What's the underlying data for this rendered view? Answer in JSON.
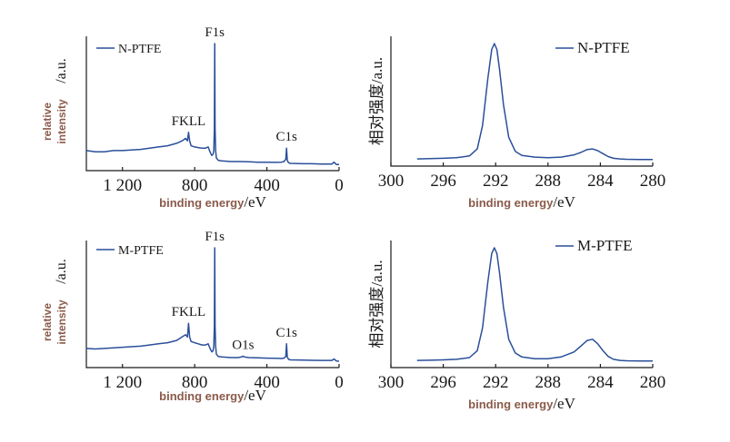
{
  "colors": {
    "series": "#2a4f9a",
    "axis": "#1a1a1a",
    "label_bold": "#8a5a4a"
  },
  "chart_data": [
    {
      "type": "line",
      "panel": "survey",
      "legend": "N-PTFE",
      "xlabel_bold": "binding energy",
      "xlabel_unit": "/eV",
      "ylabel_bold_1": "relative",
      "ylabel_bold_2": "intensity",
      "ylabel_unit": "/a.u.",
      "xlim": [
        1400,
        0
      ],
      "x_ticks": [
        1200,
        800,
        400,
        0
      ],
      "x_tick_labels": [
        "1 200",
        "800",
        "400",
        "0"
      ],
      "peaks": [
        {
          "label": "F1s",
          "x": 689,
          "y": 100
        },
        {
          "label": "FKLL",
          "x": 834,
          "y": 27
        },
        {
          "label": "C1s",
          "x": 291,
          "y": 14
        }
      ],
      "series": [
        {
          "x": [
            1400,
            1350,
            1300,
            1250,
            1200,
            1150,
            1100,
            1050,
            1000,
            950,
            900,
            870,
            850,
            840,
            834,
            828,
            820,
            800,
            780,
            760,
            740,
            725,
            715,
            705,
            698,
            694,
            691,
            689,
            687,
            684,
            680,
            670,
            650,
            600,
            550,
            500,
            450,
            400,
            350,
            320,
            305,
            295,
            291,
            287,
            280,
            270,
            200,
            150,
            100,
            60,
            40,
            28,
            15,
            0
          ],
          "y": [
            12,
            11,
            11,
            12,
            12,
            12.5,
            13,
            14,
            15,
            16,
            18,
            20,
            22,
            20,
            27,
            20,
            16,
            15,
            14.5,
            14,
            14,
            15,
            11,
            8,
            9,
            12,
            30,
            100,
            30,
            12,
            6,
            4,
            3.5,
            3,
            3,
            2.8,
            2.5,
            2.5,
            2.3,
            2.5,
            3,
            5,
            14,
            4,
            2,
            1.5,
            1.2,
            1.2,
            1,
            1,
            1,
            2.5,
            0.6,
            0.5
          ]
        }
      ]
    },
    {
      "type": "line",
      "panel": "C1s",
      "legend": "N-PTFE",
      "xlabel_bold": "binding energy",
      "xlabel_unit": "/eV",
      "ylabel": "相对强度/a.u.",
      "xlim": [
        300,
        280
      ],
      "x_ticks": [
        300,
        296,
        292,
        288,
        284,
        280
      ],
      "series": [
        {
          "x": [
            298,
            297,
            296,
            295,
            294,
            293.4,
            293,
            292.6,
            292.3,
            292.1,
            291.9,
            291.7,
            291.4,
            291,
            290.5,
            290,
            289,
            288,
            287,
            286,
            285.5,
            285,
            284.6,
            284.2,
            283.8,
            283.4,
            283,
            282.5,
            282,
            281,
            280
          ],
          "y": [
            1.5,
            1.7,
            2,
            2.5,
            4,
            10,
            30,
            70,
            95,
            100,
            95,
            78,
            48,
            20,
            8,
            4.5,
            3,
            2.5,
            3,
            5,
            7,
            9.5,
            10,
            8.5,
            6,
            3.5,
            2,
            1.5,
            1.2,
            1,
            1
          ]
        }
      ]
    },
    {
      "type": "line",
      "panel": "survey",
      "legend": "M-PTFE",
      "xlabel_bold": "binding energy",
      "xlabel_unit": "/eV",
      "ylabel_bold_1": "relative",
      "ylabel_bold_2": "intensity",
      "ylabel_unit": "/a.u.",
      "xlim": [
        1400,
        0
      ],
      "x_ticks": [
        1200,
        800,
        400,
        0
      ],
      "x_tick_labels": [
        "1 200",
        "800",
        "400",
        "0"
      ],
      "peaks": [
        {
          "label": "F1s",
          "x": 689,
          "y": 100
        },
        {
          "label": "FKLL",
          "x": 834,
          "y": 34
        },
        {
          "label": "O1s",
          "x": 532,
          "y": 5
        },
        {
          "label": "C1s",
          "x": 291,
          "y": 16
        }
      ],
      "series": [
        {
          "x": [
            1400,
            1350,
            1300,
            1250,
            1200,
            1150,
            1100,
            1050,
            1000,
            950,
            900,
            870,
            850,
            840,
            834,
            828,
            820,
            800,
            780,
            760,
            740,
            725,
            715,
            705,
            698,
            694,
            691,
            689,
            687,
            684,
            680,
            670,
            650,
            600,
            560,
            540,
            532,
            525,
            500,
            450,
            400,
            350,
            320,
            305,
            295,
            291,
            287,
            280,
            270,
            200,
            150,
            100,
            60,
            40,
            28,
            15,
            0
          ],
          "y": [
            12,
            11.5,
            12,
            12.5,
            13,
            13.5,
            14,
            15,
            16,
            17,
            19,
            22,
            24,
            22,
            34,
            22,
            18,
            17,
            16,
            15,
            15,
            16,
            12,
            9,
            10,
            14,
            32,
            100,
            32,
            14,
            7,
            5,
            4.5,
            4,
            4,
            4.5,
            5.2,
            4.5,
            4,
            3.8,
            3.5,
            3.3,
            3.2,
            3.5,
            5,
            16,
            4.5,
            2.5,
            2,
            1.8,
            1.6,
            1.5,
            1.5,
            1.5,
            2.8,
            1,
            0.8
          ]
        }
      ]
    },
    {
      "type": "line",
      "panel": "C1s",
      "legend": "M-PTFE",
      "xlabel_bold": "binding energy",
      "xlabel_unit": "/eV",
      "ylabel": "相对强度/a.u.",
      "xlim": [
        300,
        280
      ],
      "x_ticks": [
        300,
        296,
        292,
        288,
        284,
        280
      ],
      "series": [
        {
          "x": [
            298,
            297,
            296,
            295,
            294,
            293.4,
            293,
            292.6,
            292.3,
            292.1,
            291.9,
            291.7,
            291.4,
            291,
            290.5,
            290,
            289,
            288,
            287,
            286,
            285.5,
            285,
            284.6,
            284.2,
            283.8,
            283.4,
            283,
            282.5,
            282,
            281,
            280
          ],
          "y": [
            1.5,
            1.7,
            2,
            2.5,
            4,
            10,
            30,
            70,
            95,
            100,
            95,
            78,
            48,
            20,
            8,
            4.5,
            3,
            3,
            4.5,
            9,
            14,
            19,
            20,
            16,
            10,
            5,
            2.5,
            1.5,
            1.2,
            1,
            1
          ]
        }
      ]
    }
  ]
}
